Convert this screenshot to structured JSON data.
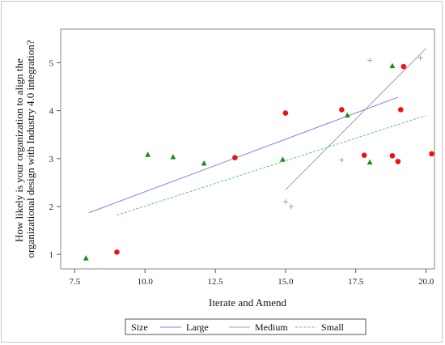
{
  "chart_data": {
    "type": "scatter",
    "xlabel": "Iterate and Amend",
    "ylabel": "How likely is your organization to align the organizational design with Industry 4.0 integration?",
    "ylabel_lines": [
      "How likely is your organization to align the",
      "organizational design with Industry 4.0 integration?"
    ],
    "xlim": [
      7,
      20.3
    ],
    "ylim": [
      0.7,
      5.7
    ],
    "xticks": [
      "7.5",
      "10.0",
      "12.5",
      "15.0",
      "17.5",
      "20.0"
    ],
    "xtick_values": [
      7.5,
      10.0,
      12.5,
      15.0,
      17.5,
      20.0
    ],
    "yticks": [
      "1",
      "2",
      "3",
      "4",
      "5"
    ],
    "ytick_values": [
      1,
      2,
      3,
      4,
      5
    ],
    "legend": {
      "title": "Size",
      "placement": "bottom",
      "entries": [
        {
          "name": "Large",
          "color": "#8080ee",
          "dash": "solid"
        },
        {
          "name": "Medium",
          "color": "#9c9cb4",
          "dash": "solid"
        },
        {
          "name": "Small",
          "color": "#60bca0",
          "dash": "dashed"
        }
      ]
    },
    "series": [
      {
        "name": "Large",
        "marker": "circle",
        "color": "#ee1111",
        "points": [
          {
            "x": 9.0,
            "y": 1.05
          },
          {
            "x": 13.2,
            "y": 3.02
          },
          {
            "x": 15.0,
            "y": 3.95
          },
          {
            "x": 17.0,
            "y": 4.02
          },
          {
            "x": 17.8,
            "y": 3.07
          },
          {
            "x": 18.8,
            "y": 3.06
          },
          {
            "x": 19.0,
            "y": 2.94
          },
          {
            "x": 19.1,
            "y": 4.02
          },
          {
            "x": 19.2,
            "y": 4.92
          },
          {
            "x": 20.2,
            "y": 3.1
          }
        ],
        "trend": {
          "x": [
            8.0,
            19.0
          ],
          "y": [
            1.87,
            4.28
          ],
          "color": "#8080ee",
          "dash": "solid"
        }
      },
      {
        "name": "Medium",
        "marker": "plus",
        "color": "#a0a0a0",
        "points": [
          {
            "x": 15.0,
            "y": 2.1
          },
          {
            "x": 15.2,
            "y": 2.0
          },
          {
            "x": 17.0,
            "y": 2.97
          },
          {
            "x": 18.0,
            "y": 5.05
          },
          {
            "x": 19.8,
            "y": 5.1
          }
        ],
        "trend": {
          "x": [
            15.0,
            20.0
          ],
          "y": [
            2.35,
            5.3
          ],
          "color": "#9c9cb4",
          "dash": "solid"
        }
      },
      {
        "name": "Small",
        "marker": "triangle",
        "color": "#119011",
        "points": [
          {
            "x": 7.9,
            "y": 0.92
          },
          {
            "x": 10.1,
            "y": 3.08
          },
          {
            "x": 11.0,
            "y": 3.03
          },
          {
            "x": 12.1,
            "y": 2.9
          },
          {
            "x": 14.9,
            "y": 2.98
          },
          {
            "x": 17.2,
            "y": 3.9
          },
          {
            "x": 18.0,
            "y": 2.92
          },
          {
            "x": 18.8,
            "y": 4.93
          }
        ],
        "trend": {
          "x": [
            9.0,
            20.0
          ],
          "y": [
            1.82,
            3.9
          ],
          "color": "#60bca0",
          "dash": "dashed"
        }
      }
    ]
  }
}
